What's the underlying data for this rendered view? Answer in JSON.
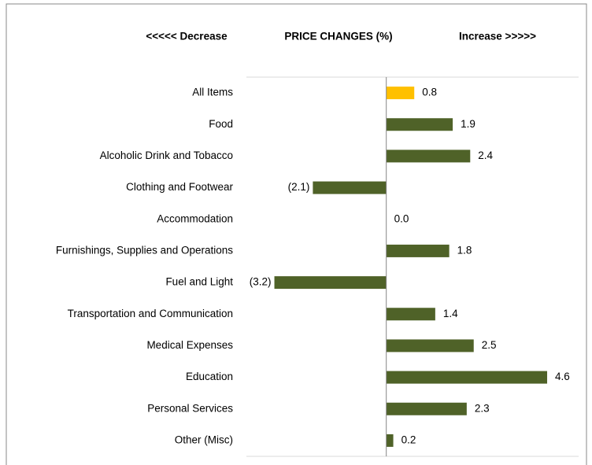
{
  "chart_data": {
    "type": "bar",
    "orientation": "horizontal",
    "header": {
      "left": "<<<<< Decrease",
      "title": "PRICE  CHANGES (%)",
      "right": "Increase   >>>>>"
    },
    "categories": [
      "All Items",
      "Food",
      "Alcoholic Drink and Tobacco",
      "Clothing and Footwear",
      "Accommodation",
      "Furnishings, Supplies and Operations",
      "Fuel and Light",
      "Transportation and Communication",
      "Medical Expenses",
      "Education",
      "Personal Services",
      "Other (Misc)"
    ],
    "values": [
      0.8,
      1.9,
      2.4,
      -2.1,
      0.0,
      1.8,
      -3.2,
      1.4,
      2.5,
      4.6,
      2.3,
      0.2
    ],
    "value_labels": [
      "0.8",
      "1.9",
      "2.4",
      "(2.1)",
      "0.0",
      "1.8",
      "(3.2)",
      "1.4",
      "2.5",
      "4.6",
      "2.3",
      "0.2"
    ],
    "colors": [
      "#ffc000",
      "#4f6228",
      "#4f6228",
      "#4f6228",
      "#4f6228",
      "#4f6228",
      "#4f6228",
      "#4f6228",
      "#4f6228",
      "#4f6228",
      "#4f6228",
      "#4f6228"
    ],
    "xlim": [
      -4,
      5.5
    ]
  }
}
